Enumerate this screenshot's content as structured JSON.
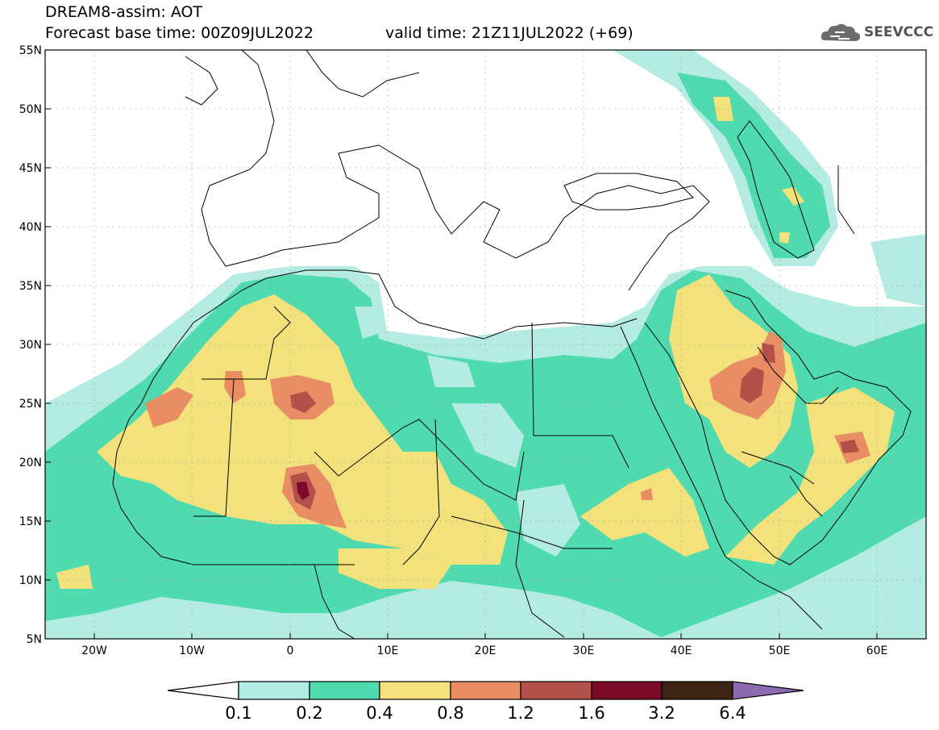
{
  "header": {
    "title_line1": "DREAM8-assim: AOT",
    "base_time": "Forecast base time: 00Z09JUL2022",
    "valid_time": "valid time: 21Z11JUL2022 (+69)"
  },
  "logo": {
    "text": "SEEVCCC",
    "icon": "cloud-icon"
  },
  "map": {
    "lon_range": [
      -25,
      65
    ],
    "lat_range": [
      5,
      55
    ],
    "lat_ticks": [
      "5N",
      "10N",
      "15N",
      "20N",
      "25N",
      "30N",
      "35N",
      "40N",
      "45N",
      "50N",
      "55N"
    ],
    "lon_ticks": [
      "20W",
      "10W",
      "0",
      "10E",
      "20E",
      "30E",
      "40E",
      "50E",
      "60E"
    ]
  },
  "colorbar": {
    "levels": [
      "0.1",
      "0.2",
      "0.4",
      "0.8",
      "1.2",
      "1.6",
      "3.2",
      "6.4"
    ],
    "colors": {
      "under": "#ffffff",
      "c1": "#b4ece4",
      "c2": "#4fdbaf",
      "c3": "#f3e27c",
      "c4": "#e88d64",
      "c5": "#b4504a",
      "c6": "#7c0a2a",
      "c7": "#3d2516",
      "over": "#8d6bb3"
    }
  }
}
